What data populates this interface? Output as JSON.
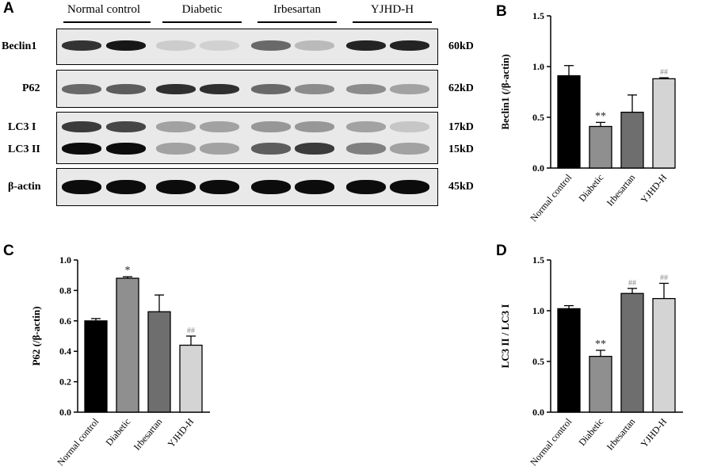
{
  "panel_a": {
    "letter": "A",
    "groups": [
      "Normal control",
      "Diabetic",
      "Irbesartan",
      "YJHD-H"
    ],
    "rows": [
      {
        "label": "Beclin1",
        "kd": "60kD",
        "lanes": [
          0.78,
          0.9,
          0.12,
          0.1,
          0.55,
          0.2,
          0.85,
          0.85
        ]
      },
      {
        "label": "P62",
        "kd": "62kD",
        "lanes": [
          0.55,
          0.6,
          0.8,
          0.8,
          0.55,
          0.4,
          0.4,
          0.3
        ]
      },
      {
        "label": "LC3 I",
        "kd": "17kD",
        "lanes": [
          0.75,
          0.7,
          0.3,
          0.3,
          0.35,
          0.35,
          0.3,
          0.15
        ]
      },
      {
        "label": "LC3 II",
        "kd": "15kD",
        "lanes": [
          0.95,
          0.95,
          0.3,
          0.3,
          0.6,
          0.75,
          0.45,
          0.3
        ]
      },
      {
        "label": "β-actin",
        "kd": "45kD",
        "lanes": [
          0.95,
          0.95,
          0.95,
          0.95,
          0.95,
          0.95,
          0.95,
          0.95
        ]
      }
    ]
  },
  "chart_data": [
    {
      "panel": "B",
      "type": "bar",
      "categories": [
        "Normal control",
        "Diabetic",
        "Irbesartan",
        "YJHD-H"
      ],
      "values": [
        0.91,
        0.41,
        0.55,
        0.88
      ],
      "errors": [
        0.1,
        0.04,
        0.17,
        0.01
      ],
      "annotations": [
        "",
        "**",
        "",
        "##"
      ],
      "ylabel": "Beclin1 (/β-actin)",
      "ylim": [
        0,
        1.5
      ],
      "yticks": [
        "0.0",
        "0.5",
        "1.0",
        "1.5"
      ],
      "colors": [
        "#000000",
        "#8f8f8f",
        "#6e6e6e",
        "#d4d4d4"
      ]
    },
    {
      "panel": "C",
      "type": "bar",
      "categories": [
        "Normal control",
        "Diabetic",
        "Irbesartan",
        "YJHD-H"
      ],
      "values": [
        0.6,
        0.88,
        0.66,
        0.44
      ],
      "errors": [
        0.015,
        0.01,
        0.11,
        0.06
      ],
      "annotations": [
        "",
        "*",
        "",
        "##"
      ],
      "ylabel": "P62 (/β-actin)",
      "ylim": [
        0,
        1.0
      ],
      "yticks": [
        "0.0",
        "0.2",
        "0.4",
        "0.6",
        "0.8",
        "1.0"
      ],
      "colors": [
        "#000000",
        "#8f8f8f",
        "#6e6e6e",
        "#d4d4d4"
      ]
    },
    {
      "panel": "D",
      "type": "bar",
      "categories": [
        "Normal control",
        "Diabetic",
        "Irbesartan",
        "YJHD-H"
      ],
      "values": [
        1.02,
        0.55,
        1.17,
        1.12
      ],
      "errors": [
        0.03,
        0.06,
        0.05,
        0.15
      ],
      "annotations": [
        "",
        "**",
        "##",
        "##"
      ],
      "ylabel": "LC3 II / LC3 I",
      "ylim": [
        0,
        1.5
      ],
      "yticks": [
        "0.0",
        "0.5",
        "1.0",
        "1.5"
      ],
      "colors": [
        "#000000",
        "#8f8f8f",
        "#6e6e6e",
        "#d4d4d4"
      ]
    }
  ]
}
